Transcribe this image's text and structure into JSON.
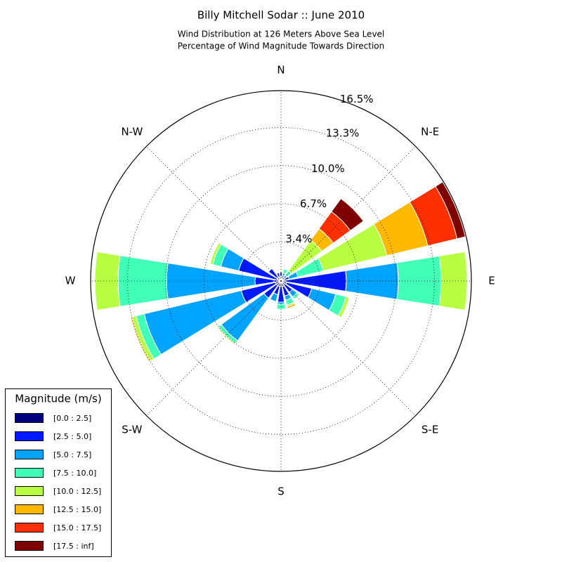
{
  "chart_data": {
    "type": "windrose",
    "title": "Billy Mitchell Sodar :: June 2010",
    "subtitle": [
      "Wind Distribution at 126 Meters Above Sea Level",
      "Percentage of Wind Magnitude Towards Direction"
    ],
    "directions": [
      "N",
      "N-E",
      "E",
      "S-E",
      "S",
      "S-W",
      "W",
      "N-W"
    ],
    "legend_title": "Magnitude (m/s)",
    "legend_position": "lower left",
    "grid": true,
    "rlim": [
      0,
      16.5
    ],
    "rticks": [
      {
        "value": 3.4,
        "label": "3.4%"
      },
      {
        "value": 6.7,
        "label": "6.7%"
      },
      {
        "value": 10.0,
        "label": "10.0%"
      },
      {
        "value": 13.3,
        "label": "13.3%"
      },
      {
        "value": 16.5,
        "label": "16.5%"
      }
    ],
    "series": [
      {
        "name": "[0.0 : 2.5]",
        "color": "#00007f",
        "values": [
          0.37,
          0.24,
          0.18,
          0.3,
          0.3,
          0.49,
          0.37,
          0.49,
          0.49,
          0.49,
          0.49,
          0.49,
          0.61,
          0.37,
          0.37,
          0.37
        ]
      },
      {
        "name": "[2.5 : 5.0]",
        "color": "#0019ff",
        "values": [
          0.37,
          0.24,
          0.18,
          0.43,
          5.36,
          2.25,
          0.85,
          0.85,
          1.34,
          0.73,
          1.34,
          3.05,
          1.64,
          3.41,
          0.97,
          0.37
        ]
      },
      {
        "name": "[5.0 : 7.5]",
        "color": "#00a4ff",
        "values": [
          0,
          0.24,
          0.24,
          0.79,
          4.51,
          2.13,
          0.49,
          0.37,
          0.18,
          0.61,
          4.57,
          8.65,
          7.67,
          1.58,
          0,
          0
        ]
      },
      {
        "name": "[7.5 : 10.0]",
        "color": "#40ffb7",
        "values": [
          0,
          0.37,
          0.49,
          2.25,
          3.71,
          0.91,
          0.24,
          0.43,
          0.43,
          0,
          0.3,
          0.73,
          4.2,
          0.73,
          0,
          0
        ]
      },
      {
        "name": "[10.0 : 12.5]",
        "color": "#b7ff40",
        "values": [
          0,
          0,
          3.29,
          5.66,
          2.25,
          0.3,
          0,
          0.12,
          0,
          0,
          0.12,
          0.37,
          2.01,
          0.24,
          0,
          0
        ]
      },
      {
        "name": "[12.5 : 15.0]",
        "color": "#ffb900",
        "values": [
          0,
          0,
          1.22,
          3.65,
          0,
          0,
          0,
          0.18,
          0,
          0,
          0,
          0.12,
          0,
          0,
          0,
          0
        ]
      },
      {
        "name": "[15.0 : 17.5]",
        "color": "#ff3000",
        "values": [
          0,
          0,
          1.83,
          2.62,
          0,
          0,
          0,
          0,
          0,
          0,
          0,
          0,
          0,
          0,
          0,
          0
        ]
      },
      {
        "name": "[17.5 : inf]",
        "color": "#7f0000",
        "values": [
          0,
          0,
          1.4,
          0.73,
          0,
          0,
          0,
          0,
          0,
          0,
          0,
          0,
          0,
          0,
          0,
          0
        ]
      }
    ]
  }
}
